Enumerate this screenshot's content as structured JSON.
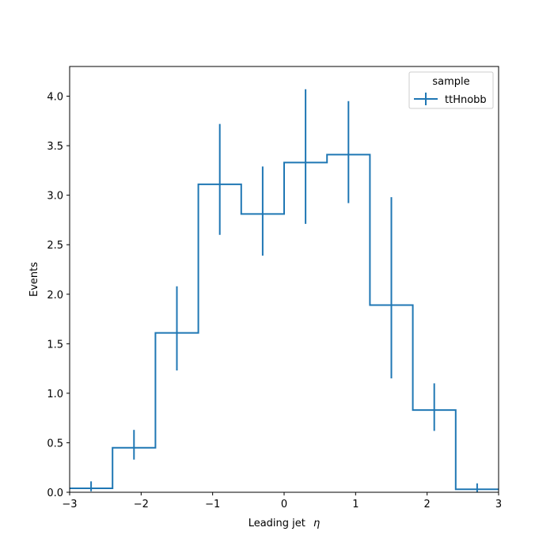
{
  "chart_data": {
    "type": "histogram",
    "title": "",
    "xlabel": "Leading jet",
    "xlabel_symbol": "η",
    "ylabel": "Events",
    "xlim": [
      -3,
      3
    ],
    "ylim": [
      0,
      4.3
    ],
    "xticks": [
      -3,
      -2,
      -1,
      0,
      1,
      2,
      3
    ],
    "xtick_labels": [
      "−3",
      "−2",
      "−1",
      "0",
      "1",
      "2",
      "3"
    ],
    "yticks": [
      0.0,
      0.5,
      1.0,
      1.5,
      2.0,
      2.5,
      3.0,
      3.5,
      4.0
    ],
    "ytick_labels": [
      "0.0",
      "0.5",
      "1.0",
      "1.5",
      "2.0",
      "2.5",
      "3.0",
      "3.5",
      "4.0"
    ],
    "bin_edges": [
      -3.0,
      -2.4,
      -1.8,
      -1.2,
      -0.6,
      0.0,
      0.6,
      1.2,
      1.8,
      2.4,
      3.0
    ],
    "series": [
      {
        "name": "ttHnobb",
        "color": "#1f77b4",
        "values": [
          0.04,
          0.45,
          1.61,
          3.11,
          2.81,
          3.33,
          3.41,
          1.89,
          0.83,
          0.03
        ],
        "err_low": [
          0.03,
          0.12,
          0.38,
          0.51,
          0.42,
          0.62,
          0.49,
          0.74,
          0.21,
          0.03
        ],
        "err_high": [
          0.07,
          0.18,
          0.47,
          0.61,
          0.48,
          0.74,
          0.54,
          1.09,
          0.27,
          0.06
        ]
      }
    ],
    "legend": {
      "title": "sample",
      "position": "top-right"
    },
    "grid": false
  }
}
